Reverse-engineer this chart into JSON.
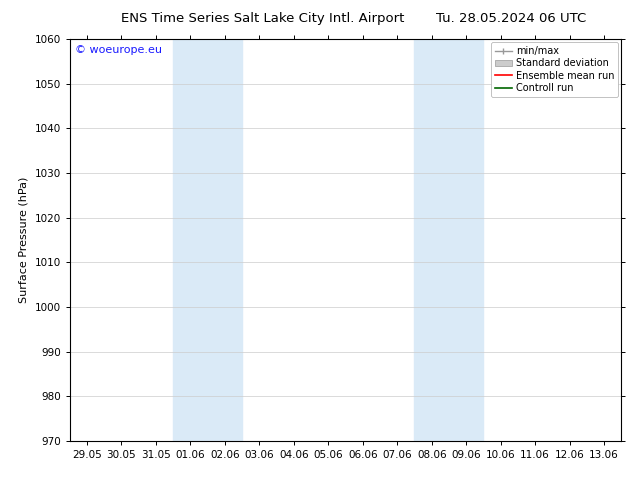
{
  "title_left": "ENS Time Series Salt Lake City Intl. Airport",
  "title_right": "Tu. 28.05.2024 06 UTC",
  "ylabel": "Surface Pressure (hPa)",
  "ylim": [
    970,
    1060
  ],
  "yticks": [
    970,
    980,
    990,
    1000,
    1010,
    1020,
    1030,
    1040,
    1050,
    1060
  ],
  "xtick_labels": [
    "29.05",
    "30.05",
    "31.05",
    "01.06",
    "02.06",
    "03.06",
    "04.06",
    "05.06",
    "06.06",
    "07.06",
    "08.06",
    "09.06",
    "10.06",
    "11.06",
    "12.06",
    "13.06"
  ],
  "xtick_positions": [
    0,
    1,
    2,
    3,
    4,
    5,
    6,
    7,
    8,
    9,
    10,
    11,
    12,
    13,
    14,
    15
  ],
  "shaded_regions": [
    {
      "x_start": 3,
      "x_end": 5,
      "color": "#daeaf7"
    },
    {
      "x_start": 10,
      "x_end": 12,
      "color": "#daeaf7"
    }
  ],
  "legend_entries": [
    {
      "label": "min/max",
      "color": "#aaaaaa",
      "type": "minmax"
    },
    {
      "label": "Standard deviation",
      "color": "#cccccc",
      "type": "stddev"
    },
    {
      "label": "Ensemble mean run",
      "color": "red",
      "type": "line"
    },
    {
      "label": "Controll run",
      "color": "green",
      "type": "line"
    }
  ],
  "watermark_text": "© woeurope.eu",
  "watermark_color": "#1a1aff",
  "background_color": "#ffffff",
  "plot_bg_color": "#ffffff",
  "grid_color": "#cccccc",
  "title_fontsize": 9.5,
  "ylabel_fontsize": 8,
  "tick_fontsize": 7.5,
  "legend_fontsize": 7,
  "watermark_fontsize": 8
}
